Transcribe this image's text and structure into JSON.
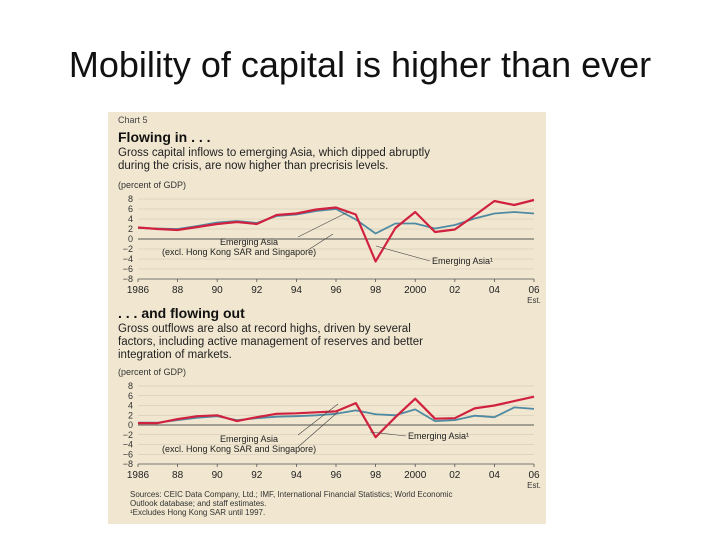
{
  "slide": {
    "title": "Mobility of capital is higher than ever"
  },
  "panel": {
    "chart_label": "Chart 5",
    "source_lines": [
      "Sources: CEIC Data Company, Ltd.; IMF, International Financial Statistics; World Economic",
      "Outlook database; and staff estimates.",
      "¹Excludes Hong Kong SAR until 1997."
    ]
  },
  "chart_data": [
    {
      "type": "line",
      "title": "Flowing in . . .",
      "subtitle": "Gross capital inflows to emerging Asia, which dipped abruptly during the crisis, are now higher than precrisis levels.",
      "subtitle_lines": [
        "Gross capital inflows to emerging Asia, which dipped abruptly",
        "during the crisis, are now higher than precrisis levels."
      ],
      "ylabel": "(percent of GDP)",
      "ylim": [
        -8,
        8
      ],
      "yticks": [
        8,
        6,
        4,
        2,
        0,
        -2,
        -4,
        -6,
        -8
      ],
      "ytick_labels": [
        "8",
        "6",
        "4",
        "2",
        "0",
        "−2",
        "−4",
        "−6",
        "−8"
      ],
      "xlim": [
        1986,
        2006
      ],
      "xticks": [
        1986,
        1988,
        1990,
        1992,
        1994,
        1996,
        1998,
        2000,
        2002,
        2004,
        2006
      ],
      "xtick_labels": [
        "1986",
        "88",
        "90",
        "92",
        "94",
        "96",
        "98",
        "2000",
        "02",
        "04",
        "06"
      ],
      "x_note": "Est.",
      "x": [
        1986,
        1987,
        1988,
        1989,
        1990,
        1991,
        1992,
        1993,
        1994,
        1995,
        1996,
        1997,
        1998,
        1999,
        2000,
        2001,
        2002,
        2003,
        2004,
        2005,
        2006
      ],
      "series": [
        {
          "name": "Emerging Asia¹",
          "color": "#d0223f",
          "values": [
            2.3,
            2.0,
            1.8,
            2.4,
            3.0,
            3.4,
            3.0,
            4.8,
            5.1,
            5.9,
            6.3,
            4.9,
            -4.5,
            2.2,
            5.4,
            1.4,
            1.9,
            4.7,
            7.6,
            6.8,
            7.8
          ]
        },
        {
          "name": "Emerging Asia (excl. Hong Kong SAR and Singapore)",
          "color": "#4f8aa3",
          "values": [
            2.2,
            2.1,
            2.0,
            2.6,
            3.3,
            3.6,
            3.2,
            4.6,
            4.9,
            5.6,
            6.0,
            3.9,
            1.1,
            3.1,
            3.1,
            2.1,
            2.8,
            4.1,
            5.1,
            5.4,
            5.1
          ]
        }
      ],
      "annotations": [
        "Emerging Asia",
        "(excl. Hong Kong SAR and Singapore)",
        "Emerging Asia¹"
      ]
    },
    {
      "type": "line",
      "title": ". . . and flowing out",
      "subtitle": "Gross outflows are also at record highs, driven by several factors, including active management of reserves and better integration of markets.",
      "subtitle_lines": [
        "Gross outflows are also at record highs, driven by several",
        "factors, including active management of reserves and better",
        "integration of markets."
      ],
      "ylabel": "(percent of GDP)",
      "ylim": [
        -8,
        8
      ],
      "yticks": [
        8,
        6,
        4,
        2,
        0,
        -2,
        -4,
        -6,
        -8
      ],
      "ytick_labels": [
        "8",
        "6",
        "4",
        "2",
        "0",
        "−2",
        "−4",
        "−6",
        "−8"
      ],
      "xlim": [
        1986,
        2006
      ],
      "xticks": [
        1986,
        1988,
        1990,
        1992,
        1994,
        1996,
        1998,
        2000,
        2002,
        2004,
        2006
      ],
      "xtick_labels": [
        "1986",
        "88",
        "90",
        "92",
        "94",
        "96",
        "98",
        "2000",
        "02",
        "04",
        "06"
      ],
      "x_note": "Est.",
      "x": [
        1986,
        1987,
        1988,
        1989,
        1990,
        1991,
        1992,
        1993,
        1994,
        1995,
        1996,
        1997,
        1998,
        1999,
        2000,
        2001,
        2002,
        2003,
        2004,
        2005,
        2006
      ],
      "series": [
        {
          "name": "Emerging Asia¹",
          "color": "#d0223f",
          "values": [
            0.4,
            0.4,
            1.2,
            1.8,
            2.0,
            0.8,
            1.6,
            2.3,
            2.4,
            2.6,
            2.8,
            4.5,
            -2.5,
            1.6,
            5.4,
            1.3,
            1.4,
            3.4,
            4.0,
            4.9,
            5.8
          ]
        },
        {
          "name": "Emerging Asia (excl. Hong Kong SAR and Singapore)",
          "color": "#4f8aa3",
          "values": [
            0.5,
            0.5,
            1.0,
            1.5,
            1.8,
            1.0,
            1.4,
            1.7,
            1.8,
            2.0,
            2.3,
            3.0,
            2.2,
            2.0,
            3.2,
            0.8,
            1.0,
            1.9,
            1.6,
            3.6,
            3.3
          ]
        }
      ],
      "annotations": [
        "Emerging Asia",
        "(excl. Hong Kong SAR and Singapore)",
        "Emerging Asia¹"
      ]
    }
  ]
}
